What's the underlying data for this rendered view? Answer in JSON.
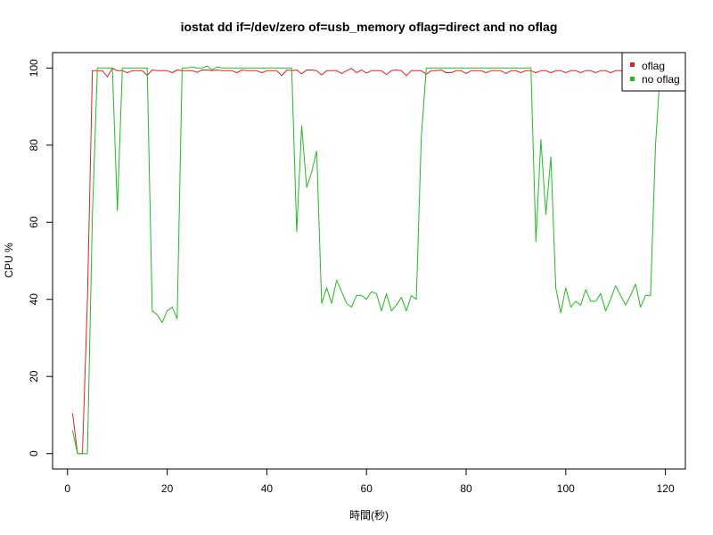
{
  "chart_data": {
    "type": "line",
    "title": "iostat dd if=/dev/zero of=usb_memory oflag=direct and no oflag",
    "xlabel": "時間(秒)",
    "ylabel": "CPU %",
    "xlim": [
      -3,
      124
    ],
    "ylim": [
      -4,
      104
    ],
    "xticks": [
      0,
      20,
      40,
      60,
      80,
      100,
      120
    ],
    "yticks": [
      0,
      20,
      40,
      60,
      80,
      100
    ],
    "xtick_labels": [
      "0",
      "20",
      "40",
      "60",
      "80",
      "100",
      "120"
    ],
    "ytick_labels": [
      "0",
      "20",
      "40",
      "60",
      "80",
      "100"
    ],
    "grid": false,
    "legend_position": "top-right",
    "series": [
      {
        "name": "oflag",
        "color": "#dd2222",
        "x": [
          1,
          2,
          3,
          4,
          5,
          6,
          7,
          8,
          9,
          10,
          11,
          12,
          13,
          14,
          15,
          16,
          17,
          18,
          19,
          20,
          21,
          22,
          23,
          24,
          25,
          26,
          27,
          28,
          29,
          30,
          31,
          32,
          33,
          34,
          35,
          36,
          37,
          38,
          39,
          40,
          41,
          42,
          43,
          44,
          45,
          46,
          47,
          48,
          49,
          50,
          51,
          52,
          53,
          54,
          55,
          56,
          57,
          58,
          59,
          60,
          61,
          62,
          63,
          64,
          65,
          66,
          67,
          68,
          69,
          70,
          71,
          72,
          73,
          74,
          75,
          76,
          77,
          78,
          79,
          80,
          81,
          82,
          83,
          84,
          85,
          86,
          87,
          88,
          89,
          90,
          91,
          92,
          93,
          94,
          95,
          96,
          97,
          98,
          99,
          100,
          101,
          102,
          103,
          104,
          105,
          106,
          107,
          108,
          109,
          110,
          111,
          112,
          113,
          114,
          115,
          116,
          117,
          118,
          119
        ],
        "y": [
          10.5,
          0,
          0,
          40,
          99.3,
          99.3,
          99.3,
          97.7,
          100,
          99.3,
          99.3,
          98.8,
          99.3,
          99.3,
          99.3,
          98.1,
          99.5,
          99.3,
          99.3,
          99.3,
          98.8,
          99.5,
          99.3,
          99.3,
          99.3,
          98.9,
          99.5,
          99.5,
          99.3,
          99.5,
          99.3,
          99.3,
          99.3,
          98.8,
          99.5,
          99.3,
          99.3,
          99.3,
          98.8,
          99.3,
          99.3,
          99.3,
          98.0,
          99.5,
          99.3,
          99.5,
          98.5,
          99.5,
          99.5,
          99.3,
          98.2,
          99.3,
          99.3,
          99.3,
          98.6,
          99.3,
          99.9,
          98.8,
          99.5,
          98.7,
          99.3,
          99.3,
          99.3,
          98.3,
          99.3,
          99.5,
          99.3,
          98.0,
          99.3,
          99.3,
          99.3,
          98.4,
          99.3,
          99.3,
          99.5,
          98.8,
          98.8,
          99.3,
          99.3,
          98.6,
          99.3,
          99.3,
          99.3,
          98.8,
          99.3,
          99.3,
          99.3,
          98.6,
          99.3,
          99.3,
          98.8,
          99.3,
          99.3,
          98.8,
          99.3,
          99.3,
          98.8,
          99.3,
          99.3,
          98.8,
          99.3,
          99.3,
          98.8,
          99.3,
          99.3,
          98.8,
          99.3,
          99.3,
          98.8,
          99.3,
          99.3,
          98.8,
          99.3,
          99.3,
          98.8,
          99.3,
          99.3,
          98.8,
          99.3
        ],
        "y_note": ""
      },
      {
        "name": "no oflag",
        "color": "#22bb22",
        "x": [
          1,
          2,
          3,
          4,
          5,
          6,
          7,
          8,
          9,
          10,
          11,
          12,
          13,
          14,
          15,
          16,
          17,
          18,
          19,
          20,
          21,
          22,
          23,
          24,
          25,
          26,
          27,
          28,
          29,
          30,
          31,
          32,
          33,
          34,
          35,
          36,
          37,
          38,
          39,
          40,
          41,
          42,
          43,
          44,
          45,
          46,
          47,
          48,
          49,
          50,
          51,
          52,
          53,
          54,
          55,
          56,
          57,
          58,
          59,
          60,
          61,
          62,
          63,
          64,
          65,
          66,
          67,
          68,
          69,
          70,
          71,
          72,
          73,
          74,
          75,
          76,
          77,
          78,
          79,
          80,
          81,
          82,
          83,
          84,
          85,
          86,
          87,
          88,
          89,
          90,
          91,
          92,
          93,
          94,
          95,
          96,
          97,
          98,
          99,
          100,
          101,
          102,
          103,
          104,
          105,
          106,
          107,
          108,
          109,
          110,
          111,
          112,
          113,
          114,
          115,
          116,
          117,
          118,
          119
        ],
        "y": [
          6,
          0,
          0,
          0,
          62,
          100,
          100,
          100,
          100,
          63,
          100,
          100,
          100,
          100,
          100,
          100,
          37,
          36,
          34,
          37,
          38,
          35,
          100,
          100,
          100.3,
          100,
          100,
          100.5,
          99.5,
          100.3,
          100,
          100,
          100,
          100,
          100,
          100,
          100,
          100,
          100,
          100,
          100,
          100,
          100,
          100,
          100,
          57.5,
          85,
          69,
          73,
          78.5,
          39,
          43,
          39,
          45,
          42,
          39,
          38,
          41,
          41,
          40,
          42,
          41.5,
          37,
          41.5,
          37,
          38.5,
          40.5,
          37,
          41,
          40,
          82,
          100,
          100,
          100,
          100,
          100,
          100,
          100,
          100,
          100,
          100,
          100,
          100,
          100,
          100,
          100,
          100,
          100,
          100,
          100,
          100,
          100,
          100,
          55,
          81.5,
          62,
          77,
          43,
          36.5,
          43,
          38,
          39.5,
          38.5,
          42.5,
          39.5,
          39.5,
          41.5,
          37,
          40,
          43.5,
          41,
          38.5,
          41,
          44,
          38,
          41,
          41,
          80,
          100
        ]
      }
    ]
  }
}
